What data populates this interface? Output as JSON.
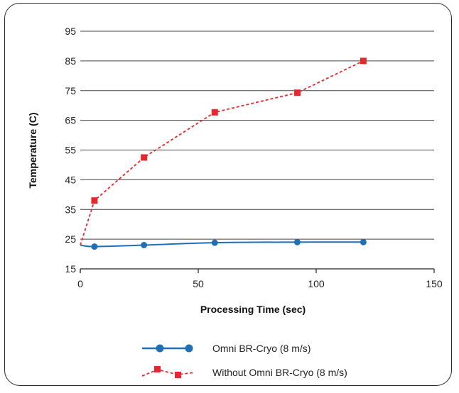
{
  "chart_data": {
    "type": "line",
    "title": "",
    "xlabel": "Processing Time (sec)",
    "ylabel": "Temperature (C)",
    "xlim": [
      0,
      150
    ],
    "ylim": [
      15,
      95
    ],
    "x_ticks": [
      "0",
      "50",
      "100",
      "150"
    ],
    "y_ticks": [
      "15",
      "25",
      "35",
      "45",
      "55",
      "65",
      "75",
      "85",
      "95"
    ],
    "grid": "horizontal",
    "legend_position": "bottom",
    "series": [
      {
        "name": "Omni BR-Cryo (8 m/s)",
        "color": "#1f6fb5",
        "line_style": "solid",
        "marker": "circle",
        "x": [
          0,
          6,
          27,
          57,
          92,
          120
        ],
        "y": [
          23,
          22.5,
          23,
          23.8,
          24,
          24
        ]
      },
      {
        "name": "Without Omni BR-Cryo (8 m/s)",
        "color": "#e5282e",
        "line_style": "dashed",
        "marker": "square",
        "x": [
          0,
          6,
          27,
          57,
          92,
          120
        ],
        "y": [
          23,
          38,
          52.5,
          67.7,
          74.3,
          85
        ]
      }
    ]
  }
}
